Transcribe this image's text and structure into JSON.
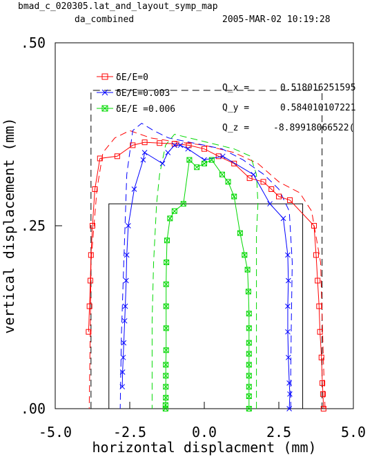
{
  "header": {
    "file": "bmad_c_020305.lat_and_layout_symp_map",
    "subtitle": "da_combined",
    "date": "2005-MAR-02  10:19:28"
  },
  "tunes": [
    {
      "label": "Q_x  =",
      "value": "0.518016251595"
    },
    {
      "label": "Q_y  =",
      "value": "0.584010107221"
    },
    {
      "label": "Q_z  =",
      "value": "-8.89918066522("
    }
  ],
  "colors": {
    "red": "#ff0000",
    "blue": "#0000ff",
    "green": "#00d800",
    "black": "#000000"
  },
  "chart_data": {
    "type": "line",
    "title": "",
    "xlabel": "horizontal displacment (mm)",
    "ylabel": "vertical displacement (mm)",
    "xlim": [
      -5.0,
      5.0
    ],
    "ylim": [
      0.0,
      0.5
    ],
    "x_ticks": [
      {
        "v": -5.0,
        "label": "-5.0"
      },
      {
        "v": -2.5,
        "label": "-2.5"
      },
      {
        "v": 0.0,
        "label": "0.0"
      },
      {
        "v": 2.5,
        "label": "2.5"
      },
      {
        "v": 5.0,
        "label": "5.0"
      }
    ],
    "y_ticks": [
      {
        "v": 0.0,
        "label": ".00"
      },
      {
        "v": 0.25,
        "label": ".25"
      },
      {
        "v": 0.5,
        "label": ".50"
      }
    ],
    "legend_position": "top-left",
    "series": [
      {
        "name": "δE/E=0",
        "color": "#ff0000",
        "marker": "square",
        "style": "solid",
        "x": [
          4.0,
          3.98,
          3.96,
          3.93,
          3.88,
          3.85,
          3.8,
          3.75,
          3.68,
          2.87,
          2.5,
          2.25,
          1.98,
          1.52,
          1.0,
          0.48,
          0.0,
          -0.52,
          -1.0,
          -1.5,
          -2.0,
          -2.4,
          -2.92,
          -3.5,
          -3.67,
          -3.75,
          -3.8,
          -3.82,
          -3.85,
          -3.88
        ],
        "y": [
          0.0,
          0.02,
          0.035,
          0.07,
          0.105,
          0.14,
          0.175,
          0.21,
          0.25,
          0.285,
          0.29,
          0.3,
          0.31,
          0.315,
          0.335,
          0.345,
          0.355,
          0.36,
          0.362,
          0.363,
          0.364,
          0.36,
          0.345,
          0.342,
          0.3,
          0.25,
          0.21,
          0.175,
          0.14,
          0.105
        ]
      },
      {
        "name": "δE/E=0.003",
        "color": "#0000ff",
        "marker": "cross",
        "style": "solid",
        "x": [
          2.85,
          2.87,
          2.85,
          2.82,
          2.8,
          2.8,
          2.82,
          2.8,
          2.65,
          2.2,
          1.65,
          0.62,
          0.0,
          -0.55,
          -0.8,
          -1.0,
          -1.22,
          -1.4,
          -2.0,
          -2.05,
          -2.35,
          -2.55,
          -2.6,
          -2.62,
          -2.65,
          -2.67,
          -2.7,
          -2.72,
          -2.74,
          -2.75
        ],
        "y": [
          0.0,
          0.02,
          0.035,
          0.07,
          0.105,
          0.14,
          0.175,
          0.21,
          0.26,
          0.28,
          0.32,
          0.345,
          0.34,
          0.355,
          0.36,
          0.36,
          0.35,
          0.335,
          0.35,
          0.34,
          0.3,
          0.25,
          0.21,
          0.175,
          0.14,
          0.12,
          0.09,
          0.07,
          0.05,
          0.03
        ]
      },
      {
        "name": "δE/E =0.006",
        "color": "#00d800",
        "marker": "boxx",
        "style": "solid",
        "x": [
          1.5,
          1.5,
          1.5,
          1.5,
          1.5,
          1.5,
          1.5,
          1.5,
          1.5,
          1.48,
          1.45,
          1.35,
          1.2,
          1.0,
          0.8,
          0.6,
          0.25,
          0.0,
          -0.25,
          -0.5,
          -0.7,
          -1.0,
          -1.15,
          -1.25,
          -1.27,
          -1.28,
          -1.28,
          -1.28,
          -1.28,
          -1.29,
          -1.29,
          -1.29,
          -1.29,
          -1.3,
          -1.3
        ],
        "y": [
          0.0,
          0.017,
          0.03,
          0.045,
          0.06,
          0.075,
          0.09,
          0.11,
          0.13,
          0.16,
          0.19,
          0.21,
          0.24,
          0.29,
          0.31,
          0.32,
          0.34,
          0.335,
          0.33,
          0.34,
          0.28,
          0.27,
          0.26,
          0.23,
          0.2,
          0.17,
          0.14,
          0.11,
          0.08,
          0.06,
          0.045,
          0.03,
          0.015,
          0.005,
          0.0
        ]
      }
    ],
    "dashed_series": [
      {
        "color": "#ff0000",
        "x": [
          4.05,
          4.0,
          3.9,
          3.6,
          3.2,
          2.5,
          1.8,
          1.0,
          0.0,
          -1.0,
          -1.8,
          -2.5,
          -3.0,
          -3.4,
          -3.6,
          -3.8,
          -3.82,
          -3.84,
          -3.86
        ],
        "y": [
          0.0,
          0.06,
          0.2,
          0.27,
          0.295,
          0.31,
          0.335,
          0.35,
          0.36,
          0.365,
          0.37,
          0.38,
          0.37,
          0.35,
          0.3,
          0.2,
          0.12,
          0.06,
          0.0
        ]
      },
      {
        "color": "#0000ff",
        "x": [
          2.9,
          2.9,
          2.92,
          2.95,
          2.85,
          2.5,
          2.0,
          1.3,
          0.6,
          0.0,
          -0.6,
          -1.2,
          -1.7,
          -2.1,
          -2.4,
          -2.6,
          -2.7,
          -2.78,
          -2.82
        ],
        "y": [
          0.0,
          0.05,
          0.12,
          0.2,
          0.27,
          0.3,
          0.32,
          0.34,
          0.355,
          0.36,
          0.365,
          0.37,
          0.38,
          0.39,
          0.38,
          0.32,
          0.2,
          0.1,
          0.0
        ]
      },
      {
        "color": "#00d800",
        "x": [
          1.75,
          1.75,
          1.75,
          1.75,
          1.8,
          1.75,
          1.55,
          1.0,
          0.5,
          0.0,
          -0.5,
          -1.0,
          -1.3,
          -1.5,
          -1.6,
          -1.7,
          -1.75,
          -1.75,
          -1.75
        ],
        "y": [
          0.0,
          0.08,
          0.16,
          0.24,
          0.28,
          0.32,
          0.345,
          0.355,
          0.36,
          0.365,
          0.37,
          0.375,
          0.36,
          0.32,
          0.28,
          0.2,
          0.12,
          0.06,
          0.0
        ]
      }
    ],
    "boxes": [
      {
        "style": "dashed",
        "x": [
          -3.8,
          3.95
        ],
        "y": [
          0.0,
          0.435
        ]
      },
      {
        "style": "solid",
        "x": [
          -3.2,
          3.3
        ],
        "y": [
          0.0,
          0.28
        ]
      }
    ]
  }
}
